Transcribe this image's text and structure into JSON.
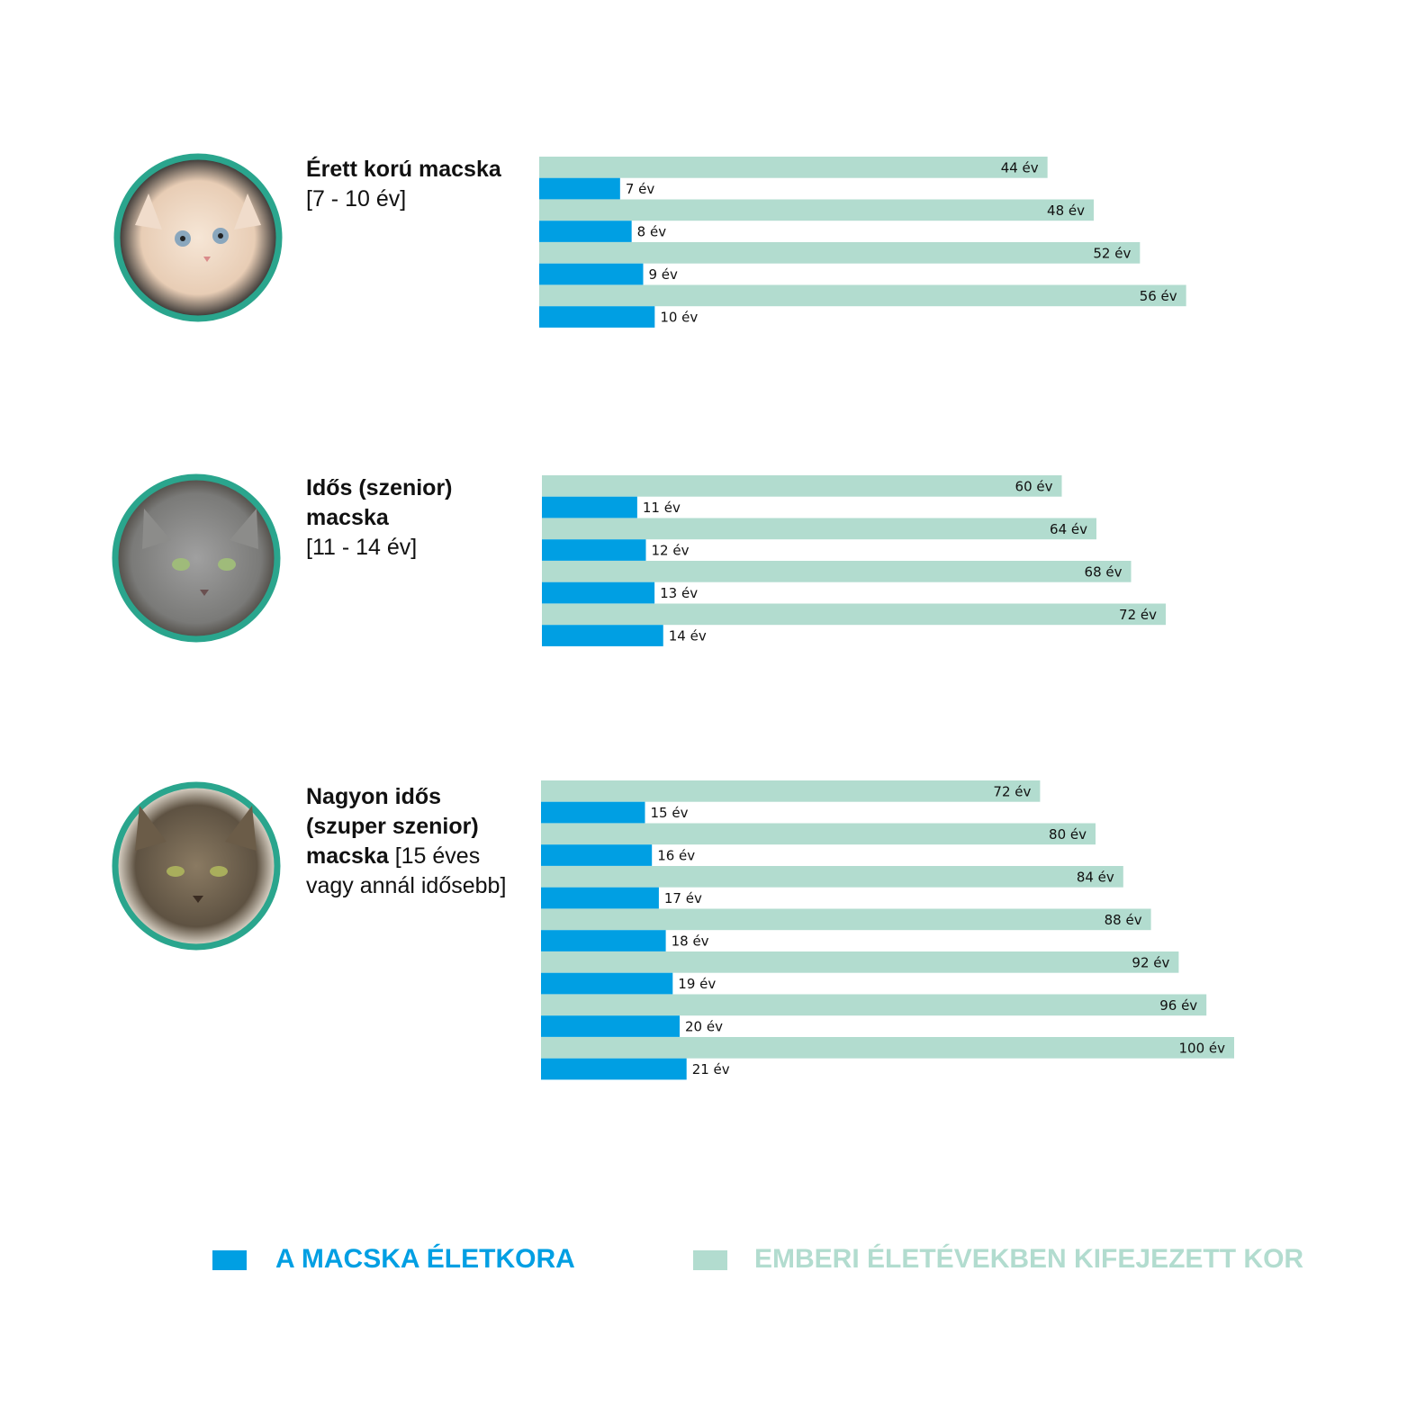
{
  "legend": [
    {
      "name": "A MACSKA ÉLETKORA",
      "color": "#009fe3"
    },
    {
      "name": "EMBERI ÉLETÉVEKBEN KIFEJEZETT KOR",
      "color": "#b2dccf"
    }
  ],
  "chart_data": [
    {
      "type": "bar",
      "title": "Érett korú macska",
      "subtitle": "[7 - 10 év]",
      "xlim": [
        0,
        60
      ],
      "series": [
        {
          "values": [
            7,
            8,
            9,
            10
          ],
          "value_labels": [
            "7 év",
            "8 év",
            "9 év",
            "10 év"
          ]
        },
        {
          "values": [
            44,
            48,
            52,
            56
          ],
          "value_labels": [
            "44 év",
            "48 év",
            "52 év",
            "56 év"
          ]
        }
      ]
    },
    {
      "type": "bar",
      "title": "Idős (szenior) macska",
      "subtitle": "[11 - 14 év]",
      "xlim": [
        0,
        80
      ],
      "series": [
        {
          "values": [
            11,
            12,
            13,
            14
          ],
          "value_labels": [
            "11 év",
            "12 év",
            "13 év",
            "14 év"
          ]
        },
        {
          "values": [
            60,
            64,
            68,
            72
          ],
          "value_labels": [
            "60 év",
            "64 év",
            "68 év",
            "72 év"
          ]
        }
      ]
    },
    {
      "type": "bar",
      "title": "Nagyon idős (szuper szenior) macska",
      "subtitle": "[15 éves vagy annál idősebb]",
      "xlim": [
        0,
        100
      ],
      "series": [
        {
          "values": [
            15,
            16,
            17,
            18,
            19,
            20,
            21
          ],
          "value_labels": [
            "15 év",
            "16 év",
            "17 év",
            "18 év",
            "19 év",
            "20 év",
            "21 év"
          ]
        },
        {
          "values": [
            72,
            80,
            84,
            88,
            92,
            96,
            100
          ],
          "value_labels": [
            "72 év",
            "80 év",
            "84 év",
            "88 év",
            "92 év",
            "96 év",
            "100 év"
          ]
        }
      ]
    }
  ]
}
